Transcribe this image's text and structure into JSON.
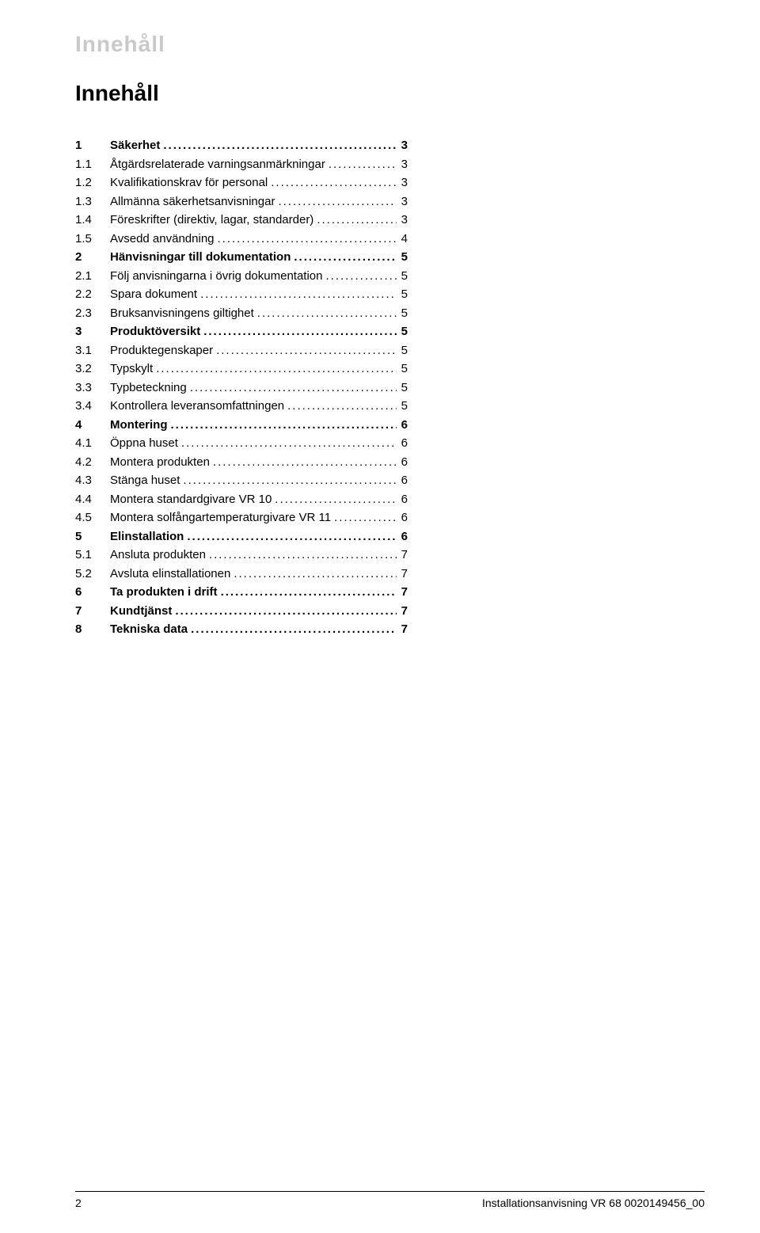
{
  "running_head": "Innehåll",
  "toc_heading": "Innehåll",
  "entries": [
    {
      "num": "1",
      "label": "Säkerhet",
      "page": "3",
      "bold": true
    },
    {
      "num": "1.1",
      "label": "Åtgärdsrelaterade varningsanmärkningar",
      "page": "3",
      "bold": false
    },
    {
      "num": "1.2",
      "label": "Kvalifikationskrav för personal",
      "page": "3",
      "bold": false
    },
    {
      "num": "1.3",
      "label": "Allmänna säkerhetsanvisningar",
      "page": "3",
      "bold": false
    },
    {
      "num": "1.4",
      "label": "Föreskrifter (direktiv, lagar, standarder)",
      "page": "3",
      "bold": false
    },
    {
      "num": "1.5",
      "label": "Avsedd användning",
      "page": "4",
      "bold": false
    },
    {
      "num": "2",
      "label": "Hänvisningar till dokumentation",
      "page": "5",
      "bold": true
    },
    {
      "num": "2.1",
      "label": "Följ anvisningarna i övrig dokumentation",
      "page": "5",
      "bold": false
    },
    {
      "num": "2.2",
      "label": "Spara dokument",
      "page": "5",
      "bold": false
    },
    {
      "num": "2.3",
      "label": "Bruksanvisningens giltighet",
      "page": "5",
      "bold": false
    },
    {
      "num": "3",
      "label": "Produktöversikt",
      "page": "5",
      "bold": true
    },
    {
      "num": "3.1",
      "label": "Produktegenskaper",
      "page": "5",
      "bold": false
    },
    {
      "num": "3.2",
      "label": "Typskylt",
      "page": "5",
      "bold": false
    },
    {
      "num": "3.3",
      "label": "Typbeteckning",
      "page": "5",
      "bold": false
    },
    {
      "num": "3.4",
      "label": "Kontrollera leveransomfattningen",
      "page": "5",
      "bold": false
    },
    {
      "num": "4",
      "label": "Montering",
      "page": "6",
      "bold": true
    },
    {
      "num": "4.1",
      "label": "Öppna huset",
      "page": "6",
      "bold": false
    },
    {
      "num": "4.2",
      "label": "Montera produkten",
      "page": "6",
      "bold": false
    },
    {
      "num": "4.3",
      "label": "Stänga huset",
      "page": "6",
      "bold": false
    },
    {
      "num": "4.4",
      "label": "Montera standardgivare VR 10",
      "page": "6",
      "bold": false
    },
    {
      "num": "4.5",
      "label": "Montera solfångartemperaturgivare VR 11",
      "page": "6",
      "bold": false
    },
    {
      "num": "5",
      "label": "Elinstallation",
      "page": "6",
      "bold": true
    },
    {
      "num": "5.1",
      "label": "Ansluta produkten",
      "page": "7",
      "bold": false
    },
    {
      "num": "5.2",
      "label": "Avsluta elinstallationen",
      "page": "7",
      "bold": false
    },
    {
      "num": "6",
      "label": "Ta produkten i drift",
      "page": "7",
      "bold": true
    },
    {
      "num": "7",
      "label": "Kundtjänst",
      "page": "7",
      "bold": true
    },
    {
      "num": "8",
      "label": "Tekniska data",
      "page": "7",
      "bold": true
    }
  ],
  "footer": {
    "page_number": "2",
    "doc_id": "Installationsanvisning VR 68 0020149456_00"
  },
  "colors": {
    "running_head": "#c9c9c9",
    "text": "#000000",
    "background": "#ffffff"
  }
}
